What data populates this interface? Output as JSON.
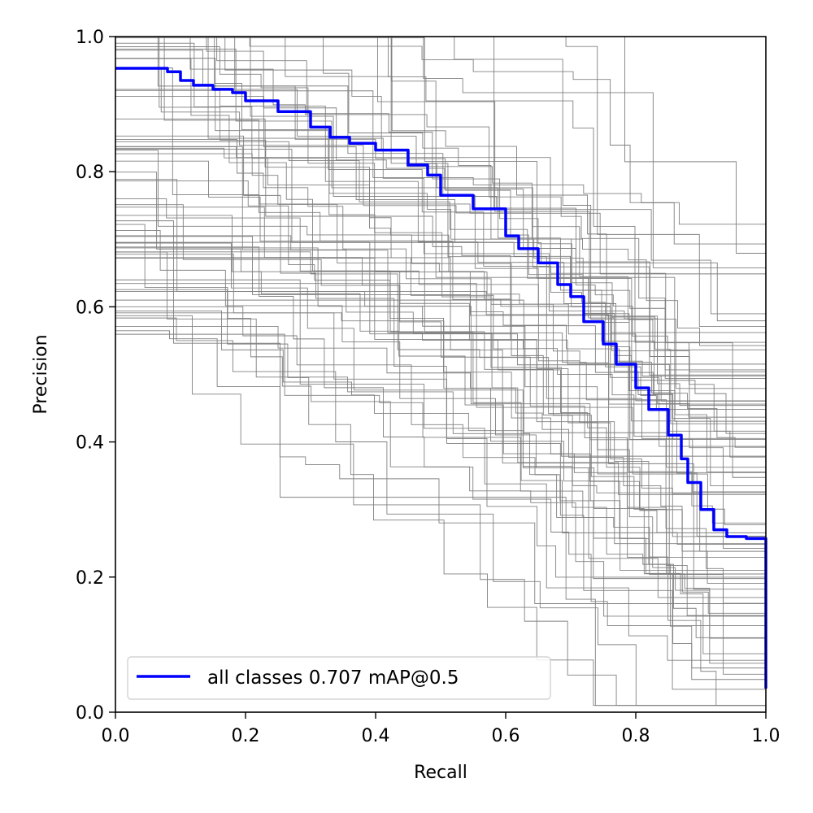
{
  "chart_data": {
    "type": "line",
    "title": "",
    "xlabel": "Recall",
    "ylabel": "Precision",
    "xlim": [
      0,
      1
    ],
    "ylim": [
      0,
      1
    ],
    "x_ticks": [
      "0.0",
      "0.2",
      "0.4",
      "0.6",
      "0.8",
      "1.0"
    ],
    "y_ticks": [
      "0.0",
      "0.2",
      "0.4",
      "0.6",
      "0.8",
      "1.0"
    ],
    "grid": false,
    "legend_position": "lower-left",
    "series": [
      {
        "name": "all classes 0.707 mAP@0.5",
        "color": "#0000ff",
        "x": [
          0.0,
          0.05,
          0.08,
          0.1,
          0.12,
          0.15,
          0.18,
          0.2,
          0.25,
          0.3,
          0.33,
          0.36,
          0.4,
          0.45,
          0.48,
          0.5,
          0.5,
          0.55,
          0.6,
          0.62,
          0.65,
          0.68,
          0.7,
          0.72,
          0.75,
          0.77,
          0.8,
          0.82,
          0.85,
          0.87,
          0.88,
          0.9,
          0.92,
          0.94,
          0.97,
          1.0,
          1.0
        ],
        "y": [
          0.953,
          0.953,
          0.948,
          0.935,
          0.928,
          0.922,
          0.917,
          0.905,
          0.889,
          0.866,
          0.851,
          0.842,
          0.832,
          0.81,
          0.795,
          0.795,
          0.765,
          0.745,
          0.705,
          0.686,
          0.665,
          0.633,
          0.615,
          0.578,
          0.545,
          0.515,
          0.48,
          0.448,
          0.41,
          0.375,
          0.34,
          0.3,
          0.27,
          0.26,
          0.257,
          0.256,
          0.035
        ]
      }
    ],
    "class_curves": {
      "color": "#808080",
      "count": 80,
      "seed": 12345
    }
  }
}
